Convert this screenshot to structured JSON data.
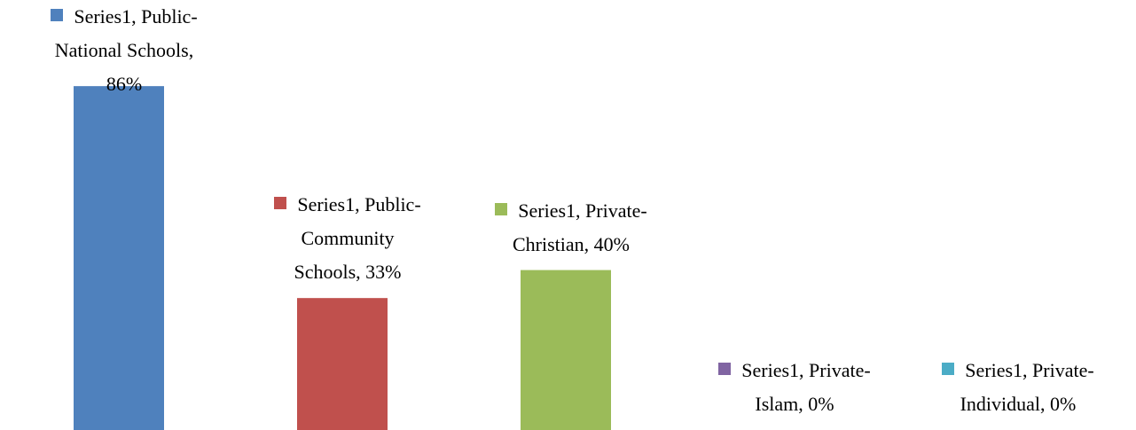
{
  "chart_data": {
    "type": "bar",
    "values": [
      86,
      33,
      40,
      0,
      0
    ],
    "value_labels": [
      "Series1, Public-National Schools, 86%",
      "Series1, Public-Community Schools, 33%",
      "Series1, Private-Christian, 40%",
      "Series1, Private-Islam, 0%",
      "Series1, Private-Individual, 0%"
    ],
    "colors": [
      "#4f81bd",
      "#c0504d",
      "#9bbb59",
      "#8064a2",
      "#4bacc6"
    ],
    "ylim": [
      0,
      100
    ]
  }
}
